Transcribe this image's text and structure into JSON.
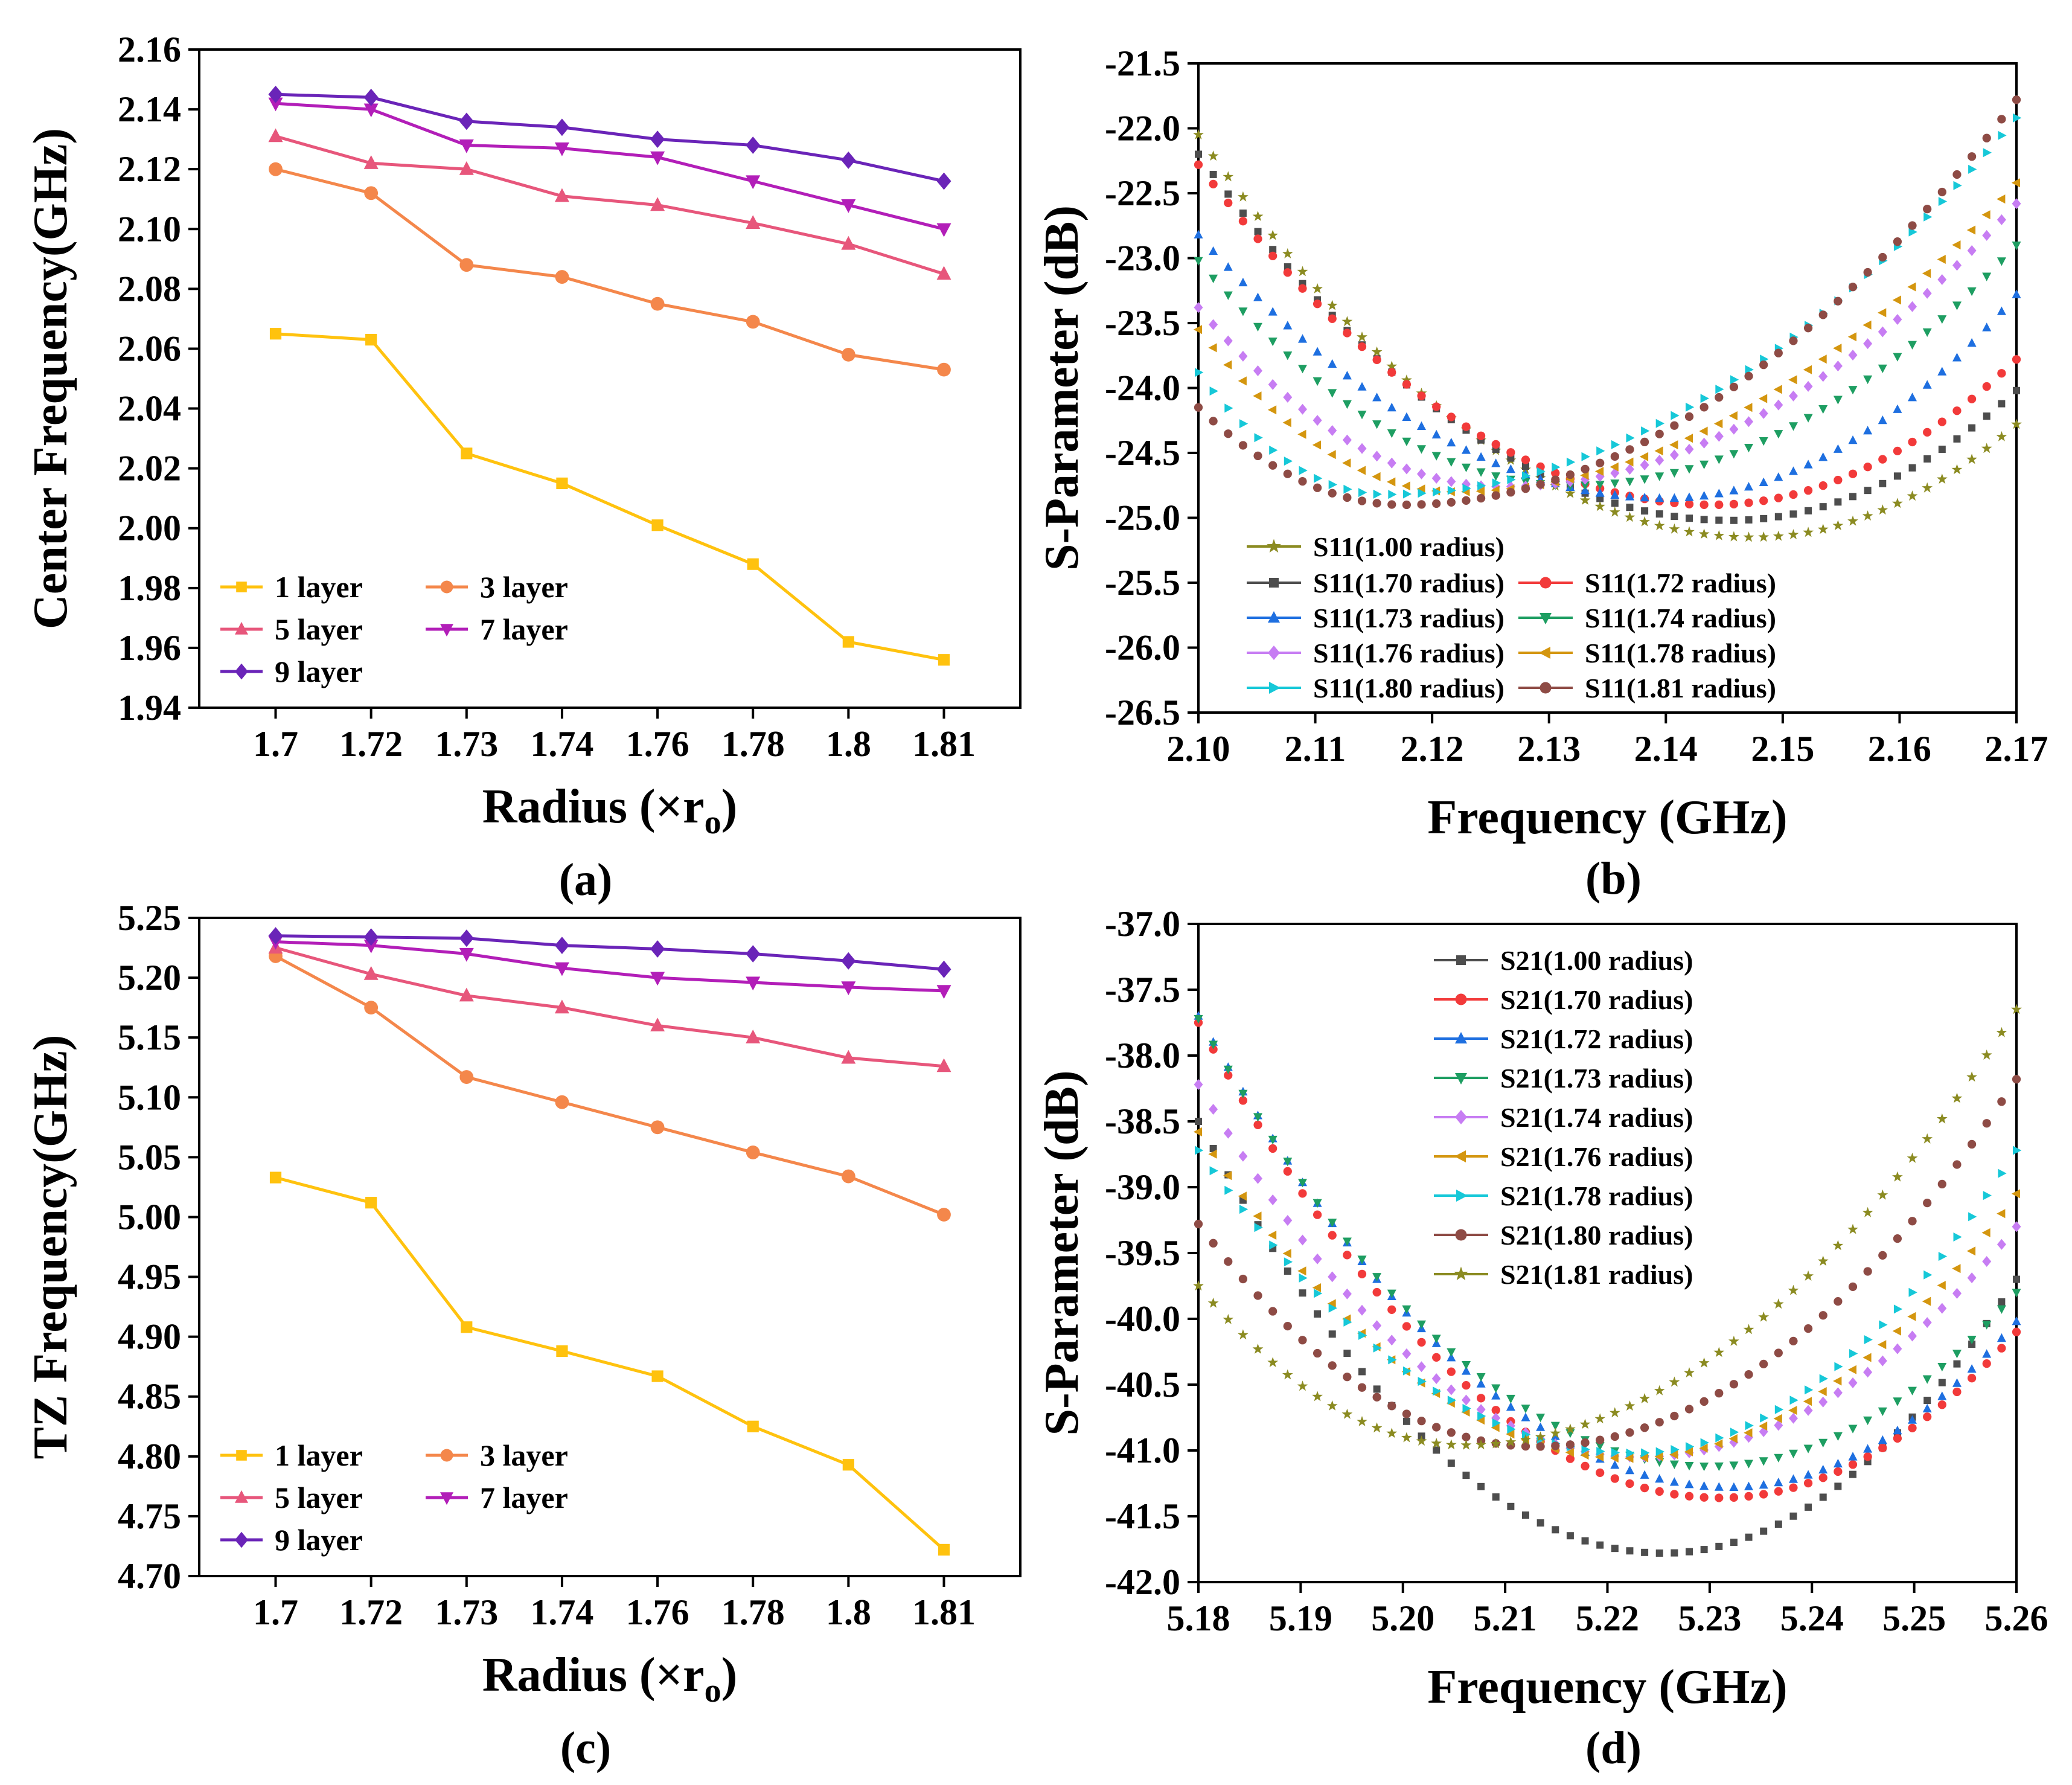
{
  "chart_data": [
    {
      "panel": "a",
      "type": "line",
      "panel_label": "(a)",
      "xlabel": "Radius (×r",
      "xlabel_sub": "o",
      "xlabel_close": ")",
      "ylabel": "Center Frequency(GHz)",
      "categories": [
        "1.7",
        "1.72",
        "1.73",
        "1.74",
        "1.76",
        "1.78",
        "1.8",
        "1.81"
      ],
      "ylim": [
        1.94,
        2.16
      ],
      "yticks": [
        "1.94",
        "1.96",
        "1.98",
        "2.00",
        "2.02",
        "2.04",
        "2.06",
        "2.08",
        "2.10",
        "2.12",
        "2.14",
        "2.16"
      ],
      "legend_position": "bottom-left",
      "series": [
        {
          "name": "1 layer",
          "color": "#FFC20E",
          "marker": "square",
          "values": [
            2.065,
            2.063,
            2.025,
            2.015,
            2.001,
            1.988,
            1.962,
            1.956
          ]
        },
        {
          "name": "3 layer",
          "color": "#F4874B",
          "marker": "circle",
          "values": [
            2.12,
            2.112,
            2.088,
            2.084,
            2.075,
            2.069,
            2.058,
            2.053
          ]
        },
        {
          "name": "5 layer",
          "color": "#E7567B",
          "marker": "triangle-up",
          "values": [
            2.131,
            2.122,
            2.12,
            2.111,
            2.108,
            2.102,
            2.095,
            2.085
          ]
        },
        {
          "name": "7 layer",
          "color": "#B21EB8",
          "marker": "triangle-down",
          "values": [
            2.142,
            2.14,
            2.128,
            2.127,
            2.124,
            2.116,
            2.108,
            2.1
          ]
        },
        {
          "name": "9 layer",
          "color": "#6A24B8",
          "marker": "diamond",
          "values": [
            2.145,
            2.144,
            2.136,
            2.134,
            2.13,
            2.128,
            2.123,
            2.116
          ]
        }
      ]
    },
    {
      "panel": "b",
      "type": "scatter",
      "panel_label": "(b)",
      "xlabel": "Frequency (GHz)",
      "ylabel": "S-Parameter (dB)",
      "xlim": [
        2.1,
        2.17
      ],
      "ylim": [
        -26.5,
        -21.5
      ],
      "xticks": [
        "2.10",
        "2.11",
        "2.12",
        "2.13",
        "2.14",
        "2.15",
        "2.16",
        "2.17"
      ],
      "yticks": [
        "-21.5",
        "-22.0",
        "-22.5",
        "-23.0",
        "-23.5",
        "-24.0",
        "-24.5",
        "-25.0",
        "-25.5",
        "-26.0",
        "-26.5"
      ],
      "legend_position": "bottom-left",
      "series": [
        {
          "name": "S11(1.00 radius)",
          "color": "#8B8B21",
          "marker": "star",
          "x": [
            2.1,
            2.1475,
            2.17
          ],
          "y": [
            -22.05,
            -25.15,
            -24.28
          ]
        },
        {
          "name": "S11(1.70 radius)",
          "color": "#4D4D4D",
          "marker": "square",
          "x": [
            2.1,
            2.1455,
            2.17
          ],
          "y": [
            -22.2,
            -25.02,
            -24.02
          ]
        },
        {
          "name": "S11(1.72 radius)",
          "color": "#F23A3A",
          "marker": "circle",
          "x": [
            2.1,
            2.144,
            2.17
          ],
          "y": [
            -22.28,
            -24.9,
            -23.78
          ]
        },
        {
          "name": "S11(1.73 radius)",
          "color": "#1E6FE0",
          "marker": "triangle-up",
          "x": [
            2.1,
            2.14,
            2.17
          ],
          "y": [
            -22.82,
            -24.85,
            -23.28
          ]
        },
        {
          "name": "S11(1.74 radius)",
          "color": "#1E9E62",
          "marker": "triangle-down",
          "x": [
            2.1,
            2.132,
            2.17
          ],
          "y": [
            -23.02,
            -24.75,
            -22.9
          ]
        },
        {
          "name": "S11(1.76 radius)",
          "color": "#C77DF3",
          "marker": "diamond",
          "x": [
            2.1,
            2.126,
            2.17
          ],
          "y": [
            -23.38,
            -24.76,
            -22.58
          ]
        },
        {
          "name": "S11(1.78 radius)",
          "color": "#D4960F",
          "marker": "triangle-left",
          "x": [
            2.1,
            2.122,
            2.17
          ],
          "y": [
            -23.55,
            -24.8,
            -22.42
          ]
        },
        {
          "name": "S11(1.80 radius)",
          "color": "#16C8D8",
          "marker": "triangle-right",
          "x": [
            2.1,
            2.116,
            2.17
          ],
          "y": [
            -23.88,
            -24.82,
            -21.92
          ]
        },
        {
          "name": "S11(1.81 radius)",
          "color": "#8E4B45",
          "marker": "circle",
          "x": [
            2.1,
            2.1175,
            2.17
          ],
          "y": [
            -24.15,
            -24.9,
            -21.78
          ]
        }
      ]
    },
    {
      "panel": "c",
      "type": "line",
      "panel_label": "(c)",
      "xlabel": "Radius (×r",
      "xlabel_sub": "o",
      "xlabel_close": ")",
      "ylabel": "TZ Frequency(GHz)",
      "categories": [
        "1.7",
        "1.72",
        "1.73",
        "1.74",
        "1.76",
        "1.78",
        "1.8",
        "1.81"
      ],
      "ylim": [
        4.7,
        5.25
      ],
      "yticks": [
        "4.70",
        "4.75",
        "4.80",
        "4.85",
        "4.90",
        "4.95",
        "5.00",
        "5.05",
        "5.10",
        "5.15",
        "5.20",
        "5.25"
      ],
      "legend_position": "bottom-left",
      "series": [
        {
          "name": "1 layer",
          "color": "#FFC20E",
          "marker": "square",
          "values": [
            5.033,
            5.012,
            4.908,
            4.888,
            4.867,
            4.825,
            4.793,
            4.722
          ]
        },
        {
          "name": "3 layer",
          "color": "#F4874B",
          "marker": "circle",
          "values": [
            5.218,
            5.175,
            5.117,
            5.096,
            5.075,
            5.054,
            5.034,
            5.002
          ]
        },
        {
          "name": "5 layer",
          "color": "#E7567B",
          "marker": "triangle-up",
          "values": [
            5.225,
            5.203,
            5.185,
            5.175,
            5.16,
            5.15,
            5.133,
            5.126
          ]
        },
        {
          "name": "7 layer",
          "color": "#B21EB8",
          "marker": "triangle-down",
          "values": [
            5.23,
            5.227,
            5.22,
            5.208,
            5.2,
            5.196,
            5.192,
            5.189
          ]
        },
        {
          "name": "9 layer",
          "color": "#6A24B8",
          "marker": "diamond",
          "values": [
            5.235,
            5.234,
            5.233,
            5.227,
            5.224,
            5.22,
            5.214,
            5.207
          ]
        }
      ]
    },
    {
      "panel": "d",
      "type": "scatter",
      "panel_label": "(d)",
      "xlabel": "Frequency (GHz)",
      "ylabel": "S-Parameter (dB)",
      "xlim": [
        5.18,
        5.26
      ],
      "ylim": [
        -42.0,
        -37.0
      ],
      "xticks": [
        "5.18",
        "5.19",
        "5.20",
        "5.21",
        "5.22",
        "5.23",
        "5.24",
        "5.25",
        "5.26"
      ],
      "yticks": [
        "-37.0",
        "-37.5",
        "-38.0",
        "-38.5",
        "-39.0",
        "-39.5",
        "-40.0",
        "-40.5",
        "-41.0",
        "-41.5",
        "-42.0"
      ],
      "legend_position": "top-center",
      "series": [
        {
          "name": "S21(1.00 radius)",
          "color": "#4D4D4D",
          "marker": "square",
          "x": [
            5.18,
            5.2255,
            5.26
          ],
          "y": [
            -38.5,
            -41.78,
            -39.7
          ]
        },
        {
          "name": "S21(1.70 radius)",
          "color": "#F23A3A",
          "marker": "circle",
          "x": [
            5.18,
            5.231,
            5.26
          ],
          "y": [
            -37.75,
            -41.36,
            -40.1
          ]
        },
        {
          "name": "S21(1.72 radius)",
          "color": "#1E6FE0",
          "marker": "triangle-up",
          "x": [
            5.18,
            5.232,
            5.26
          ],
          "y": [
            -37.7,
            -41.28,
            -40.02
          ]
        },
        {
          "name": "S21(1.73 radius)",
          "color": "#1E9E62",
          "marker": "triangle-down",
          "x": [
            5.18,
            5.23,
            5.26
          ],
          "y": [
            -37.72,
            -41.12,
            -39.8
          ]
        },
        {
          "name": "S21(1.74 radius)",
          "color": "#C77DF3",
          "marker": "diamond",
          "x": [
            5.18,
            5.223,
            5.26
          ],
          "y": [
            -38.22,
            -41.05,
            -39.3
          ]
        },
        {
          "name": "S21(1.76 radius)",
          "color": "#D4960F",
          "marker": "triangle-left",
          "x": [
            5.18,
            5.222,
            5.26
          ],
          "y": [
            -38.58,
            -41.06,
            -39.05
          ]
        },
        {
          "name": "S21(1.78 radius)",
          "color": "#16C8D8",
          "marker": "triangle-right",
          "x": [
            5.18,
            5.2225,
            5.26
          ],
          "y": [
            -38.72,
            -41.02,
            -38.72
          ]
        },
        {
          "name": "S21(1.80 radius)",
          "color": "#8E4B45",
          "marker": "circle",
          "x": [
            5.18,
            5.213,
            5.26
          ],
          "y": [
            -39.28,
            -40.97,
            -38.18
          ]
        },
        {
          "name": "S21(1.81 radius)",
          "color": "#8B8B21",
          "marker": "star",
          "x": [
            5.18,
            5.206,
            5.26
          ],
          "y": [
            -39.75,
            -40.96,
            -37.65
          ]
        }
      ]
    }
  ]
}
